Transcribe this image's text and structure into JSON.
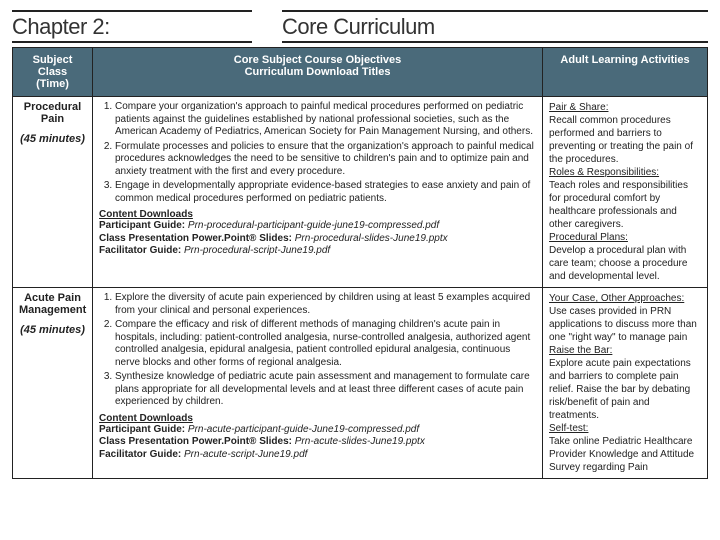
{
  "header": {
    "left": "Chapter 2:",
    "right": "Core Curriculum"
  },
  "table": {
    "headers": {
      "col1a": "Subject Class",
      "col1b": "(Time)",
      "col2a": "Core Subject Course Objectives",
      "col2b": "Curriculum Download Titles",
      "col3": "Adult Learning Activities"
    },
    "rows": [
      {
        "subject": "Procedural Pain",
        "time": "(45 minutes)",
        "objectives": [
          "Compare your organization's approach to painful medical procedures performed on pediatric patients against the guidelines established by national professional societies, such as the American Academy of Pediatrics, American Society for Pain Management Nursing, and others.",
          "Formulate processes and policies to ensure that the organization's approach to painful medical procedures acknowledges the need to be sensitive to children's pain and to optimize pain and anxiety treatment with the first and every procedure.",
          "Engage in developmentally appropriate evidence-based strategies to ease anxiety and pain of common medical procedures performed on pediatric patients."
        ],
        "downloads_head": "Content Downloads",
        "downloads": [
          {
            "label": "Participant Guide:",
            "file": "Prn-procedural-participant-guide-june19-compressed.pdf"
          },
          {
            "label": "Class Presentation Power.Point® Slides:",
            "file": "Prn-procedural-slides-June19.pptx"
          },
          {
            "label": "Facilitator Guide:",
            "file": "Prn-procedural-script-June19.pdf"
          }
        ],
        "activities": [
          {
            "head": "Pair & Share:",
            "body": "Recall common procedures performed and barriers to preventing or treating the pain of the procedures."
          },
          {
            "head": "Roles & Responsibilities:",
            "body": "Teach roles and responsibilities for procedural comfort by healthcare professionals and other caregivers."
          },
          {
            "head": "Procedural Plans:",
            "body": "Develop a procedural plan with care team; choose a procedure and developmental level."
          }
        ]
      },
      {
        "subject": "Acute Pain Management",
        "time": "(45 minutes)",
        "objectives": [
          "Explore the diversity of acute pain experienced by children using at least 5 examples acquired from your clinical and personal experiences.",
          "Compare the efficacy and risk of different methods of managing children's acute pain in hospitals, including: patient-controlled analgesia, nurse-controlled analgesia, authorized agent controlled analgesia, epidural analgesia, patient controlled epidural analgesia, continuous nerve blocks and other forms of regional analgesia.",
          "Synthesize knowledge of pediatric acute pain assessment and management to formulate care plans appropriate for all developmental levels and at least three different cases of acute pain experienced by children."
        ],
        "downloads_head": "Content Downloads",
        "downloads": [
          {
            "label": "Participant Guide:",
            "file": "Prn-acute-participant-guide-June19-compressed.pdf"
          },
          {
            "label": "Class Presentation Power.Point® Slides:",
            "file": "Prn-acute-slides-June19.pptx"
          },
          {
            "label": "Facilitator Guide:",
            "file": "Prn-acute-script-June19.pdf"
          }
        ],
        "activities": [
          {
            "head": "Your Case, Other Approaches:",
            "body": "Use cases provided in PRN applications to discuss more than one \"right way\" to manage pain"
          },
          {
            "head": "Raise the Bar:",
            "body": "Explore acute pain expectations and barriers to complete pain relief. Raise the bar by debating risk/benefit of pain and treatments."
          },
          {
            "head": "Self-test:",
            "body": "Take online Pediatric Healthcare Provider Knowledge and Attitude Survey regarding Pain"
          }
        ]
      }
    ]
  }
}
